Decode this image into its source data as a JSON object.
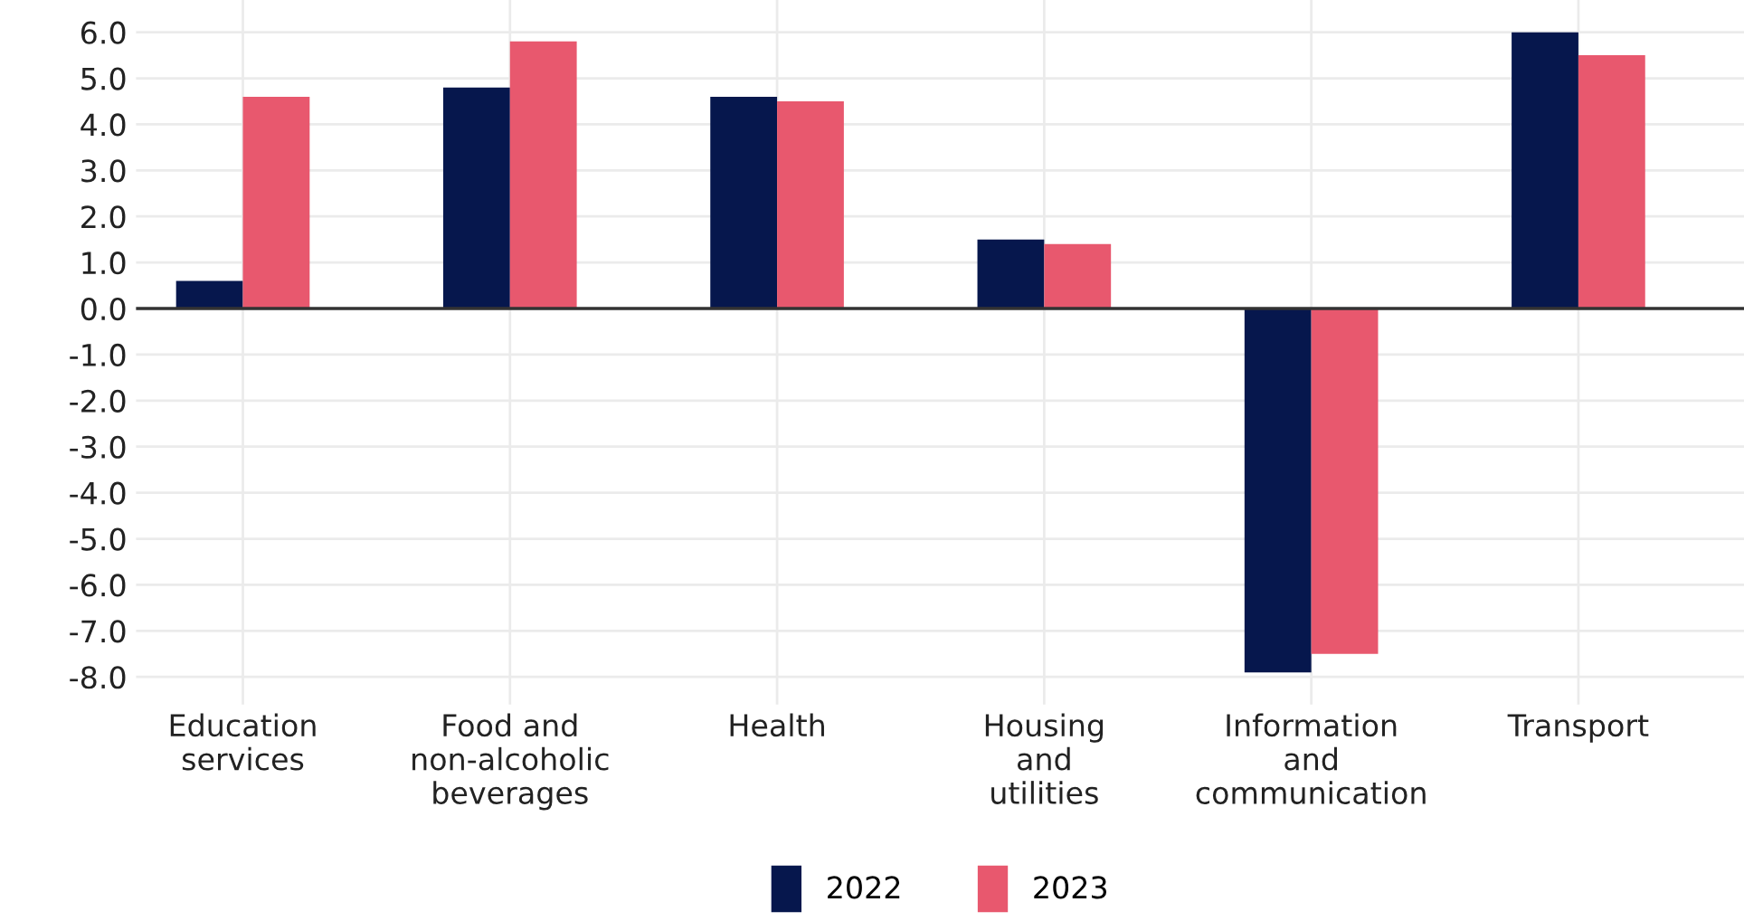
{
  "chart_data": {
    "type": "bar",
    "categories": [
      "Education\nservices",
      "Food and\nnon-alcoholic\nbeverages",
      "Health",
      "Housing\nand\nutilities",
      "Information\nand\ncommunication",
      "Transport"
    ],
    "series": [
      {
        "name": "2022",
        "color": "#06174d",
        "values": [
          0.6,
          4.8,
          4.6,
          1.5,
          -7.9,
          6.0
        ]
      },
      {
        "name": "2023",
        "color": "#e8586e",
        "values": [
          4.6,
          5.8,
          4.5,
          1.4,
          -7.5,
          5.5
        ]
      }
    ],
    "ylim": [
      -8.6,
      6.7
    ],
    "yticks": [
      {
        "value": 6,
        "label": "6.0"
      },
      {
        "value": 5,
        "label": "5.0"
      },
      {
        "value": 4,
        "label": "4.0"
      },
      {
        "value": 3,
        "label": "3.0"
      },
      {
        "value": 2,
        "label": "2.0"
      },
      {
        "value": 1,
        "label": "1.0"
      },
      {
        "value": 0,
        "label": "0.0"
      },
      {
        "value": -1,
        "label": "-1.0"
      },
      {
        "value": -2,
        "label": "-2.0"
      },
      {
        "value": -3,
        "label": "-3.0"
      },
      {
        "value": -4,
        "label": "-4.0"
      },
      {
        "value": -5,
        "label": "-5.0"
      },
      {
        "value": -6,
        "label": "-6.0"
      },
      {
        "value": -7,
        "label": "-7.0"
      },
      {
        "value": -8,
        "label": "-8.0"
      }
    ],
    "ref_lines": [
      {
        "axis": "y",
        "value": 0,
        "color": "#333333"
      }
    ],
    "grid": true,
    "legend": "bottom"
  }
}
